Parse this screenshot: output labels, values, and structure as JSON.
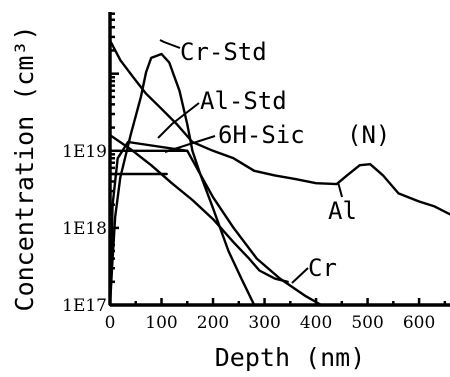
{
  "chart_data": {
    "type": "line",
    "title": "",
    "xlabel": "Depth (nm)",
    "ylabel": "Concentration (cm³)",
    "xlim": [
      0,
      660
    ],
    "ylim_log10": [
      17,
      20.8
    ],
    "yscale": "log",
    "grid": false,
    "x_ticks": [
      {
        "value": 0,
        "label": "0"
      },
      {
        "value": 100,
        "label": "100"
      },
      {
        "value": 200,
        "label": "200"
      },
      {
        "value": 300,
        "label": "300"
      },
      {
        "value": 400,
        "label": "400"
      },
      {
        "value": 500,
        "label": "500"
      },
      {
        "value": 600,
        "label": "600"
      }
    ],
    "y_ticks": [
      {
        "value": 1e+17,
        "label": "1E17"
      },
      {
        "value": 1e+18,
        "label": "1E18"
      },
      {
        "value": 1e+19,
        "label": "1E19"
      }
    ],
    "series": [
      {
        "name": "Cr-Std",
        "points": [
          [
            0,
            1e+17
          ],
          [
            5,
            4e+17
          ],
          [
            10,
            1.4e+18
          ],
          [
            20,
            4.5e+18
          ],
          [
            40,
            1.6e+19
          ],
          [
            60,
            5e+19
          ],
          [
            70,
            1.05e+20
          ],
          [
            80,
            1.6e+20
          ],
          [
            100,
            1.8e+20
          ],
          [
            115,
            1.4e+20
          ],
          [
            135,
            6e+19
          ],
          [
            150,
            2.2e+19
          ],
          [
            160,
            1e+19
          ],
          [
            175,
            5e+18
          ],
          [
            200,
            1.8e+18
          ],
          [
            230,
            5e+17
          ],
          [
            255,
            2.2e+17
          ],
          [
            280,
            1e+17
          ]
        ]
      },
      {
        "name": "Al-Std",
        "points": [
          [
            0,
            1e+17
          ],
          [
            5,
            2e+18
          ],
          [
            15,
            8e+18
          ],
          [
            35,
            1.3e+19
          ],
          [
            150,
            1e+19
          ],
          [
            200,
            2.5e+18
          ],
          [
            240,
            1e+18
          ],
          [
            285,
            4e+17
          ],
          [
            330,
            2.2e+17
          ],
          [
            380,
            1.3e+17
          ],
          [
            410,
            1e+17
          ]
        ]
      },
      {
        "name": "Al",
        "points": [
          [
            0,
            2.7e+20
          ],
          [
            20,
            1.5e+20
          ],
          [
            45,
            9e+19
          ],
          [
            70,
            5.5e+19
          ],
          [
            100,
            3.5e+19
          ],
          [
            130,
            2.2e+19
          ],
          [
            160,
            1.3e+19
          ],
          [
            200,
            1e+19
          ],
          [
            240,
            8e+18
          ],
          [
            280,
            5.5e+18
          ],
          [
            320,
            4.8e+18
          ],
          [
            360,
            4.3e+18
          ],
          [
            400,
            3.8e+18
          ],
          [
            440,
            3.7e+18
          ],
          [
            460,
            4.8e+18
          ],
          [
            485,
            6.5e+18
          ],
          [
            505,
            6.7e+18
          ],
          [
            530,
            4.8e+18
          ],
          [
            560,
            2.8e+18
          ],
          [
            600,
            2.2e+18
          ],
          [
            630,
            1.9e+18
          ],
          [
            660,
            1.5e+18
          ]
        ]
      },
      {
        "name": "Cr",
        "points": [
          [
            0,
            1.6e+19
          ],
          [
            40,
            1.05e+19
          ],
          [
            80,
            6.5e+18
          ],
          [
            120,
            3.8e+18
          ],
          [
            160,
            2.3e+18
          ],
          [
            200,
            1.3e+18
          ],
          [
            240,
            6.5e+17
          ],
          [
            270,
            4e+17
          ],
          [
            290,
            2.8e+17
          ],
          [
            320,
            2.2e+17
          ],
          [
            345,
            2e+17
          ]
        ]
      },
      {
        "name": "6H-Sic (N)",
        "points": [
          [
            0,
            5e+18
          ],
          [
            10,
            5e+18
          ],
          [
            110,
            5e+18
          ]
        ]
      }
    ],
    "annotations": [
      {
        "text": "Cr-Std",
        "series": "Cr-Std"
      },
      {
        "text": "Al-Std",
        "series": "Al-Std"
      },
      {
        "text": "6H-Sic",
        "series": "6H-Sic (N)"
      },
      {
        "text": "(N)",
        "series": "6H-Sic (N)"
      },
      {
        "text": "Al",
        "series": "Al"
      },
      {
        "text": "Cr",
        "series": "Cr"
      }
    ]
  }
}
